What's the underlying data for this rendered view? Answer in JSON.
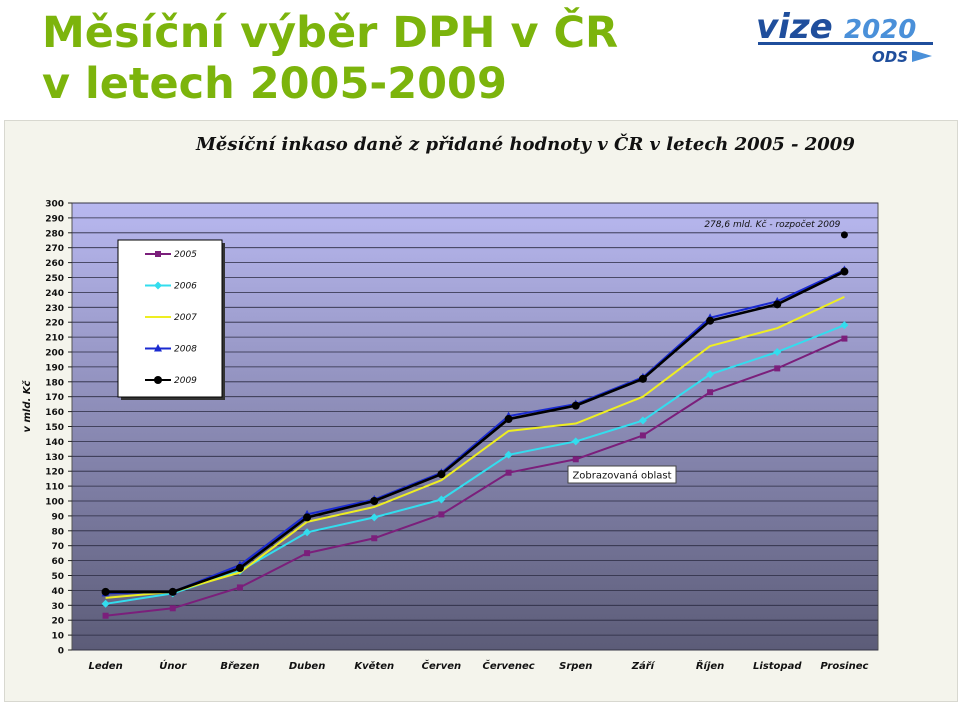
{
  "slide": {
    "title_line1": "Měsíční výběr DPH v ČR",
    "title_line2": "v letech 2005-2009",
    "title_color": "#7cb40c"
  },
  "logo": {
    "word": "vize",
    "number": "2020",
    "sub": "ODS",
    "colors": {
      "primary": "#1f4e9c",
      "accent": "#4a90d9"
    }
  },
  "chart_data": {
    "type": "line",
    "title": "Měsíční inkaso daně z přidané hodnoty v ČR v letech 2005 - 2009",
    "xlabel": "",
    "ylabel": "v mld. Kč",
    "ylim": [
      0,
      300
    ],
    "ytick_step": 10,
    "categories": [
      "Leden",
      "Únor",
      "Březen",
      "Duben",
      "Květen",
      "Červen",
      "Červenec",
      "Srpen",
      "Září",
      "Říjen",
      "Listopad",
      "Prosinec"
    ],
    "series": [
      {
        "name": "2005",
        "color": "#7b1f7b",
        "marker": "square",
        "values": [
          23,
          28,
          42,
          65,
          75,
          91,
          119,
          128,
          144,
          173,
          189,
          209
        ]
      },
      {
        "name": "2006",
        "color": "#33ddee",
        "marker": "diamond",
        "values": [
          31,
          38,
          53,
          79,
          89,
          101,
          131,
          140,
          154,
          185,
          200,
          218
        ]
      },
      {
        "name": "2007",
        "color": "#eeee22",
        "marker": "none",
        "values": [
          35,
          39,
          52,
          86,
          96,
          114,
          147,
          152,
          170,
          204,
          216,
          237
        ]
      },
      {
        "name": "2008",
        "color": "#1a2ad0",
        "marker": "triangle",
        "values": [
          38,
          39,
          57,
          91,
          101,
          119,
          157,
          165,
          183,
          223,
          234,
          255
        ]
      },
      {
        "name": "2009",
        "color": "#000000",
        "marker": "circle",
        "values": [
          39,
          39,
          55,
          89,
          100,
          118,
          155,
          164,
          182,
          221,
          232,
          254
        ]
      }
    ],
    "annotations": [
      {
        "text": "278,6 mld. Kč - rozpočet 2009",
        "category": "Prosinec",
        "value": 278.6
      },
      {
        "text": "Zobrazovaná oblast"
      }
    ],
    "legend_position": "top-left",
    "grid": true,
    "plot_background": {
      "top": "#b8b8f0",
      "bottom": "#5c5c78"
    }
  }
}
